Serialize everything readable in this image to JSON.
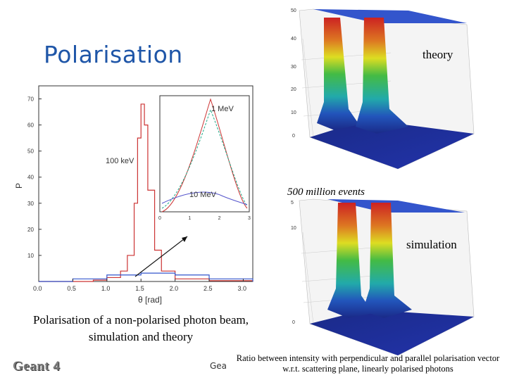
{
  "slide": {
    "title": "Polarisation",
    "label_theory": "theory",
    "label_events": "500 million events",
    "label_simulation": "simulation",
    "caption_left": "Polarisation of a non-polarised photon beam, simulation and theory",
    "caption_right": "Ratio between intensity with perpendicular and parallel polarisation vector w.r.t. scattering plane, linearly polarised photons",
    "footer_fragment": "Gea",
    "logo_text": "Geant 4"
  },
  "chart_data": [
    {
      "type": "line",
      "xlabel": "θ [rad]",
      "ylabel": "P",
      "xlim": [
        0.0,
        3.14
      ],
      "ylim": [
        0,
        75
      ],
      "x_ticks": [
        "0.0",
        "0.5",
        "1.0",
        "1.5",
        "2.0",
        "2.5",
        "3.0"
      ],
      "y_ticks": [
        "10",
        "20",
        "30",
        "40",
        "50",
        "60",
        "70"
      ],
      "annotations": [
        "100 keV"
      ],
      "series": [
        {
          "name": "100 keV",
          "color": "#cc3333",
          "x": [
            0.0,
            0.8,
            1.0,
            1.2,
            1.3,
            1.4,
            1.45,
            1.5,
            1.55,
            1.6,
            1.7,
            1.8,
            2.0,
            2.5,
            3.14
          ],
          "y": [
            0,
            0.5,
            1.5,
            4,
            10,
            30,
            55,
            68,
            60,
            35,
            12,
            4,
            1,
            0.3,
            0
          ]
        },
        {
          "name": "",
          "color": "#3355cc",
          "x": [
            0.0,
            0.5,
            1.0,
            1.5,
            2.0,
            2.5,
            3.14
          ],
          "y": [
            0,
            1,
            2.5,
            3.2,
            2.5,
            1,
            0
          ]
        }
      ]
    },
    {
      "type": "line",
      "inset": true,
      "xlim": [
        0,
        3
      ],
      "x_ticks": [
        "0",
        "1",
        "2",
        "3"
      ],
      "annotations": [
        "1 MeV",
        "10 MeV"
      ],
      "series": [
        {
          "name": "1 MeV",
          "color": "#cc3333"
        },
        {
          "name": "",
          "color": "#22aa88"
        },
        {
          "name": "10 MeV",
          "color": "#5555cc"
        }
      ]
    }
  ]
}
